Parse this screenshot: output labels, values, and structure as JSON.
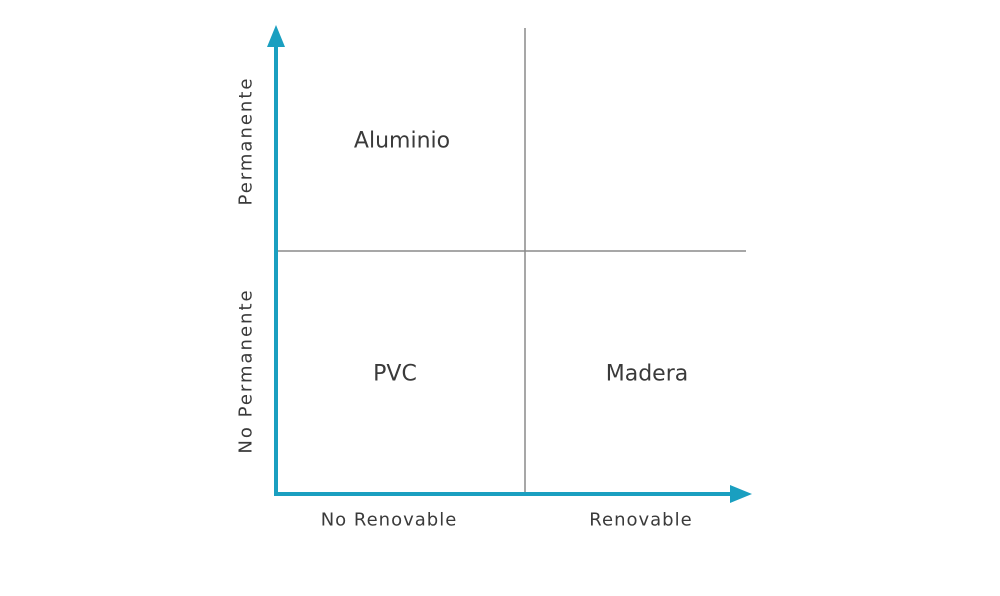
{
  "quadrants": {
    "top_left": "Aluminio",
    "top_right": "",
    "bottom_left": "PVC",
    "bottom_right": "Madera"
  },
  "x_axis": {
    "left_label": "No Renovable",
    "right_label": "Renovable"
  },
  "y_axis": {
    "top_label": "Permanente",
    "bottom_label": "No Permanente"
  },
  "colors": {
    "axis": "#1a9fc0",
    "divider": "#8a8a8a",
    "text": "#3a3a3a"
  }
}
